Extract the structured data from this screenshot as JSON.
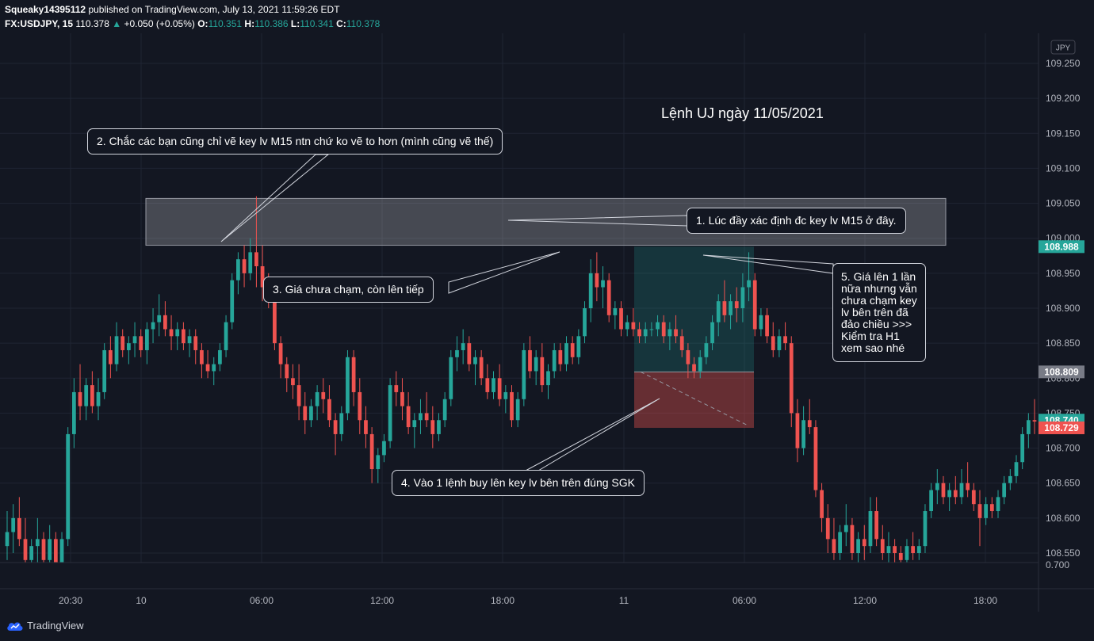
{
  "header": {
    "author": "Squeaky14395112",
    "published_text": "published on TradingView.com, July 13, 2021 11:59:26 EDT",
    "symbol": "FX:USDJPY, 15",
    "last": "110.378",
    "change": "+0.050 (+0.05%)",
    "o_label": "O:",
    "o": "110.351",
    "h_label": "H:",
    "h": "110.386",
    "l_label": "L:",
    "l": "110.341",
    "c_label": "C:",
    "c": "110.378"
  },
  "footer": {
    "brand": "TradingView"
  },
  "colors": {
    "background": "#131722",
    "up": "#26a69a",
    "down": "#ef5350",
    "grid": "#1f2433",
    "text": "#d1d4dc"
  },
  "chart_data": {
    "type": "candlestick",
    "title": "Lệnh UJ ngày 11/05/2021",
    "currency": "JPY",
    "ylim": [
      108.525,
      109.285
    ],
    "y_ticks": [
      "109.250",
      "109.200",
      "109.150",
      "109.100",
      "109.050",
      "109.000",
      "108.950",
      "108.900",
      "108.850",
      "108.800",
      "108.750",
      "108.700",
      "108.650",
      "108.600",
      "108.550"
    ],
    "x_ticks": [
      "20:30",
      "10",
      "06:00",
      "12:00",
      "18:00",
      "11",
      "06:00",
      "12:00",
      "18:00"
    ],
    "price_labels": [
      {
        "text": "108.988",
        "price": 108.988,
        "color": "#26a69a"
      },
      {
        "text": "108.809",
        "price": 108.809,
        "color": "#787b86"
      },
      {
        "text": "108.740",
        "price": 108.74,
        "color": "#26a69a"
      },
      {
        "text": "108.729",
        "price": 108.729,
        "color": "#ef5350"
      }
    ],
    "lower_scale_tick": "0.700",
    "key_zone": {
      "from": 108.99,
      "to": 109.057,
      "label": "key lv M15"
    },
    "long_position": {
      "entry": 108.809,
      "target": 108.988,
      "stop": 108.729
    },
    "ohlc": [
      [
        108.56,
        108.61,
        108.54,
        108.58
      ],
      [
        108.58,
        108.62,
        108.55,
        108.6
      ],
      [
        108.6,
        108.63,
        108.56,
        108.57
      ],
      [
        108.57,
        108.6,
        108.52,
        108.54
      ],
      [
        108.54,
        108.57,
        108.52,
        108.56
      ],
      [
        108.56,
        108.6,
        108.53,
        108.57
      ],
      [
        108.57,
        108.58,
        108.52,
        108.54
      ],
      [
        108.54,
        108.59,
        108.53,
        108.57
      ],
      [
        108.57,
        108.58,
        108.52,
        108.53
      ],
      [
        108.53,
        108.58,
        108.52,
        108.57
      ],
      [
        108.57,
        108.73,
        108.56,
        108.72
      ],
      [
        108.72,
        108.8,
        108.7,
        108.78
      ],
      [
        108.78,
        108.82,
        108.74,
        108.76
      ],
      [
        108.76,
        108.8,
        108.74,
        108.79
      ],
      [
        108.79,
        108.81,
        108.75,
        108.76
      ],
      [
        108.76,
        108.8,
        108.74,
        108.78
      ],
      [
        108.78,
        108.85,
        108.77,
        108.84
      ],
      [
        108.84,
        108.86,
        108.8,
        108.82
      ],
      [
        108.82,
        108.88,
        108.81,
        108.86
      ],
      [
        108.86,
        108.87,
        108.83,
        108.84
      ],
      [
        108.84,
        108.86,
        108.82,
        108.85
      ],
      [
        108.85,
        108.88,
        108.83,
        108.86
      ],
      [
        108.86,
        108.87,
        108.83,
        108.84
      ],
      [
        108.84,
        108.88,
        108.82,
        108.87
      ],
      [
        108.87,
        108.9,
        108.85,
        108.88
      ],
      [
        108.88,
        108.92,
        108.86,
        108.89
      ],
      [
        108.89,
        108.91,
        108.86,
        108.87
      ],
      [
        108.87,
        108.89,
        108.84,
        108.86
      ],
      [
        108.86,
        108.88,
        108.84,
        108.87
      ],
      [
        108.87,
        108.88,
        108.84,
        108.85
      ],
      [
        108.85,
        108.87,
        108.83,
        108.86
      ],
      [
        108.86,
        108.87,
        108.82,
        108.84
      ],
      [
        108.84,
        108.85,
        108.8,
        108.82
      ],
      [
        108.82,
        108.84,
        108.8,
        108.81
      ],
      [
        108.81,
        108.83,
        108.79,
        108.82
      ],
      [
        108.82,
        108.85,
        108.81,
        108.84
      ],
      [
        108.84,
        108.89,
        108.83,
        108.88
      ],
      [
        108.88,
        108.95,
        108.87,
        108.94
      ],
      [
        108.94,
        108.98,
        108.92,
        108.97
      ],
      [
        108.97,
        108.99,
        108.93,
        108.95
      ],
      [
        108.95,
        109.0,
        108.94,
        108.98
      ],
      [
        108.98,
        109.06,
        108.93,
        108.96
      ],
      [
        108.96,
        108.99,
        108.91,
        108.93
      ],
      [
        108.93,
        108.95,
        108.9,
        108.91
      ],
      [
        108.91,
        108.94,
        108.84,
        108.85
      ],
      [
        108.85,
        108.86,
        108.8,
        108.82
      ],
      [
        108.82,
        108.83,
        108.78,
        108.8
      ],
      [
        108.8,
        108.82,
        108.77,
        108.79
      ],
      [
        108.79,
        108.82,
        108.74,
        108.76
      ],
      [
        108.76,
        108.78,
        108.72,
        108.74
      ],
      [
        108.74,
        108.77,
        108.73,
        108.76
      ],
      [
        108.76,
        108.79,
        108.74,
        108.78
      ],
      [
        108.78,
        108.8,
        108.75,
        108.77
      ],
      [
        108.77,
        108.79,
        108.73,
        108.74
      ],
      [
        108.74,
        108.75,
        108.69,
        108.72
      ],
      [
        108.72,
        108.76,
        108.71,
        108.75
      ],
      [
        108.75,
        108.84,
        108.74,
        108.83
      ],
      [
        108.83,
        108.84,
        108.76,
        108.78
      ],
      [
        108.78,
        108.8,
        108.72,
        108.74
      ],
      [
        108.74,
        108.76,
        108.7,
        108.72
      ],
      [
        108.72,
        108.73,
        108.65,
        108.67
      ],
      [
        108.67,
        108.7,
        108.65,
        108.69
      ],
      [
        108.69,
        108.72,
        108.68,
        108.71
      ],
      [
        108.71,
        108.8,
        108.7,
        108.79
      ],
      [
        108.79,
        108.81,
        108.76,
        108.78
      ],
      [
        108.78,
        108.8,
        108.74,
        108.76
      ],
      [
        108.76,
        108.78,
        108.72,
        108.73
      ],
      [
        108.73,
        108.75,
        108.7,
        108.74
      ],
      [
        108.74,
        108.77,
        108.72,
        108.75
      ],
      [
        108.75,
        108.78,
        108.73,
        108.74
      ],
      [
        108.74,
        108.76,
        108.7,
        108.72
      ],
      [
        108.72,
        108.75,
        108.71,
        108.74
      ],
      [
        108.74,
        108.78,
        108.73,
        108.77
      ],
      [
        108.77,
        108.84,
        108.76,
        108.83
      ],
      [
        108.83,
        108.86,
        108.81,
        108.84
      ],
      [
        108.84,
        108.87,
        108.82,
        108.85
      ],
      [
        108.85,
        108.86,
        108.81,
        108.82
      ],
      [
        108.82,
        108.84,
        108.79,
        108.83
      ],
      [
        108.83,
        108.84,
        108.79,
        108.8
      ],
      [
        108.8,
        108.82,
        108.77,
        108.78
      ],
      [
        108.78,
        108.81,
        108.77,
        108.8
      ],
      [
        108.8,
        108.82,
        108.76,
        108.77
      ],
      [
        108.77,
        108.79,
        108.75,
        108.78
      ],
      [
        108.78,
        108.79,
        108.73,
        108.74
      ],
      [
        108.74,
        108.78,
        108.73,
        108.77
      ],
      [
        108.77,
        108.85,
        108.76,
        108.84
      ],
      [
        108.84,
        108.86,
        108.8,
        108.81
      ],
      [
        108.81,
        108.84,
        108.79,
        108.83
      ],
      [
        108.83,
        108.85,
        108.78,
        108.79
      ],
      [
        108.79,
        108.82,
        108.77,
        108.81
      ],
      [
        108.81,
        108.85,
        108.8,
        108.84
      ],
      [
        108.84,
        108.85,
        108.81,
        108.82
      ],
      [
        108.82,
        108.86,
        108.81,
        108.85
      ],
      [
        108.85,
        108.86,
        108.82,
        108.83
      ],
      [
        108.83,
        108.87,
        108.82,
        108.86
      ],
      [
        108.86,
        108.91,
        108.85,
        108.9
      ],
      [
        108.9,
        108.97,
        108.88,
        108.95
      ],
      [
        108.95,
        108.98,
        108.91,
        108.93
      ],
      [
        108.93,
        108.96,
        108.9,
        108.94
      ],
      [
        108.94,
        108.95,
        108.88,
        108.89
      ],
      [
        108.89,
        108.91,
        108.87,
        108.9
      ],
      [
        108.9,
        108.91,
        108.86,
        108.87
      ],
      [
        108.87,
        108.89,
        108.86,
        108.88
      ],
      [
        108.88,
        108.9,
        108.86,
        108.87
      ],
      [
        108.87,
        108.88,
        108.85,
        108.86
      ],
      [
        108.86,
        108.88,
        108.85,
        108.87
      ],
      [
        108.87,
        108.88,
        108.86,
        108.87
      ],
      [
        108.87,
        108.89,
        108.86,
        108.88
      ],
      [
        108.88,
        108.89,
        108.85,
        108.86
      ],
      [
        108.86,
        108.88,
        108.84,
        108.87
      ],
      [
        108.87,
        108.89,
        108.85,
        108.86
      ],
      [
        108.86,
        108.87,
        108.83,
        108.84
      ],
      [
        108.84,
        108.85,
        108.8,
        108.82
      ],
      [
        108.82,
        108.83,
        108.8,
        108.81
      ],
      [
        108.81,
        108.84,
        108.8,
        108.83
      ],
      [
        108.83,
        108.86,
        108.82,
        108.85
      ],
      [
        108.85,
        108.89,
        108.84,
        108.88
      ],
      [
        108.88,
        108.92,
        108.86,
        108.91
      ],
      [
        108.91,
        108.94,
        108.88,
        108.89
      ],
      [
        108.89,
        108.92,
        108.87,
        108.91
      ],
      [
        108.91,
        108.93,
        108.88,
        108.9
      ],
      [
        108.9,
        108.95,
        108.88,
        108.93
      ],
      [
        108.93,
        108.98,
        108.91,
        108.94
      ],
      [
        108.94,
        108.95,
        108.86,
        108.87
      ],
      [
        108.87,
        108.9,
        108.86,
        108.89
      ],
      [
        108.89,
        108.9,
        108.85,
        108.86
      ],
      [
        108.86,
        108.88,
        108.83,
        108.84
      ],
      [
        108.84,
        108.87,
        108.83,
        108.86
      ],
      [
        108.86,
        108.88,
        108.84,
        108.85
      ],
      [
        108.85,
        108.86,
        108.73,
        108.75
      ],
      [
        108.75,
        108.77,
        108.68,
        108.7
      ],
      [
        108.7,
        108.76,
        108.69,
        108.74
      ],
      [
        108.74,
        108.77,
        108.72,
        108.73
      ],
      [
        108.73,
        108.74,
        108.63,
        108.64
      ],
      [
        108.64,
        108.65,
        108.58,
        108.6
      ],
      [
        108.6,
        108.62,
        108.55,
        108.57
      ],
      [
        108.57,
        108.6,
        108.54,
        108.55
      ],
      [
        108.55,
        108.59,
        108.54,
        108.58
      ],
      [
        108.58,
        108.62,
        108.56,
        108.59
      ],
      [
        108.59,
        108.6,
        108.54,
        108.55
      ],
      [
        108.55,
        108.58,
        108.53,
        108.57
      ],
      [
        108.57,
        108.59,
        108.54,
        108.56
      ],
      [
        108.56,
        108.63,
        108.55,
        108.61
      ],
      [
        108.61,
        108.63,
        108.56,
        108.57
      ],
      [
        108.57,
        108.59,
        108.54,
        108.55
      ],
      [
        108.55,
        108.58,
        108.53,
        108.56
      ],
      [
        108.56,
        108.57,
        108.53,
        108.55
      ],
      [
        108.55,
        108.56,
        108.52,
        108.54
      ],
      [
        108.54,
        108.57,
        108.53,
        108.56
      ],
      [
        108.56,
        108.58,
        108.54,
        108.55
      ],
      [
        108.55,
        108.57,
        108.54,
        108.56
      ],
      [
        108.56,
        108.62,
        108.55,
        108.61
      ],
      [
        108.61,
        108.65,
        108.6,
        108.64
      ],
      [
        108.64,
        108.67,
        108.62,
        108.65
      ],
      [
        108.65,
        108.66,
        108.62,
        108.63
      ],
      [
        108.63,
        108.65,
        108.61,
        108.64
      ],
      [
        108.64,
        108.66,
        108.62,
        108.63
      ],
      [
        108.63,
        108.67,
        108.62,
        108.65
      ],
      [
        108.65,
        108.68,
        108.63,
        108.64
      ],
      [
        108.64,
        108.65,
        108.61,
        108.62
      ],
      [
        108.62,
        108.64,
        108.56,
        108.6
      ],
      [
        108.6,
        108.63,
        108.59,
        108.62
      ],
      [
        108.62,
        108.63,
        108.6,
        108.61
      ],
      [
        108.61,
        108.64,
        108.6,
        108.63
      ],
      [
        108.63,
        108.66,
        108.62,
        108.65
      ],
      [
        108.65,
        108.67,
        108.64,
        108.66
      ],
      [
        108.66,
        108.69,
        108.65,
        108.68
      ],
      [
        108.68,
        108.73,
        108.67,
        108.72
      ],
      [
        108.72,
        108.75,
        108.7,
        108.74
      ],
      [
        108.74,
        108.77,
        108.72,
        108.738
      ]
    ]
  },
  "annotations": {
    "note1": "1. Lúc đầy xác định đc key lv M15 ở đây.",
    "note2": "2. Chắc các bạn cũng chỉ vẽ key lv M15 ntn chứ ko vẽ to hơn (mình cũng vẽ thế)",
    "note3": "3. Giá chưa chạm, còn lên tiếp",
    "note4": "4. Vào 1 lệnh buy lên key lv bên trên đúng SGK",
    "note5": "5. Giá lên 1 lần nữa nhưng vẫn chưa chạm key lv bên trên đã đảo chiều >>> Kiểm tra H1 xem sao nhé"
  }
}
